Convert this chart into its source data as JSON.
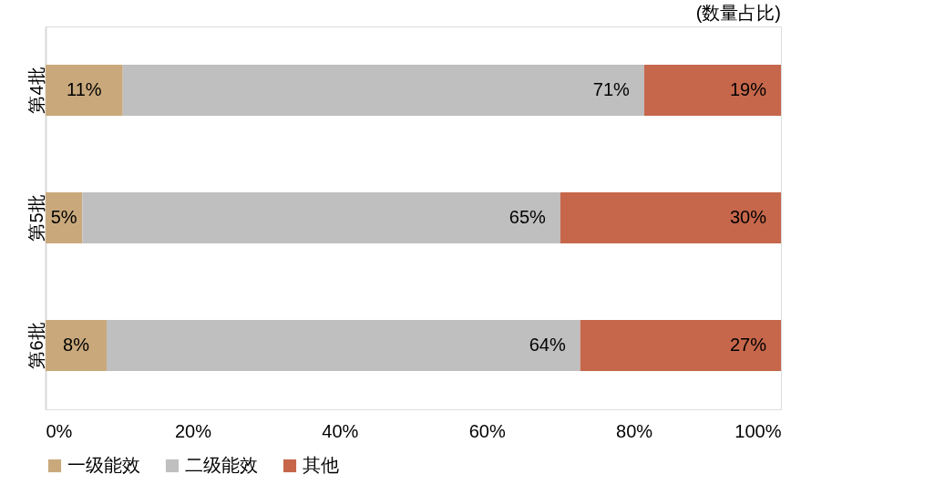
{
  "chart_data": {
    "type": "bar",
    "orientation": "horizontal",
    "stacked": true,
    "categories": [
      "第4批",
      "第5批",
      "第6批"
    ],
    "series": [
      {
        "name": "一级能效",
        "color": "#c9a97c",
        "values": [
          10.5,
          5,
          8.3
        ],
        "value_labels": [
          "11%",
          "5%",
          "8%"
        ]
      },
      {
        "name": "二级能效",
        "color": "#bfbfc0",
        "values": [
          70.9,
          65,
          64.4
        ],
        "value_labels": [
          "71%",
          "65%",
          "64%"
        ]
      },
      {
        "name": "其他",
        "color": "#c6674b",
        "values": [
          18.6,
          30,
          27.3
        ],
        "value_labels": [
          "19%",
          "30%",
          "27%"
        ]
      }
    ],
    "xlim": [
      0,
      100
    ],
    "xticks": [
      {
        "value": 0,
        "label": "0%"
      },
      {
        "value": 20,
        "label": "20%"
      },
      {
        "value": 40,
        "label": "40%"
      },
      {
        "value": 60,
        "label": "60%"
      },
      {
        "value": 80,
        "label": "80%"
      },
      {
        "value": 100,
        "label": "100%"
      }
    ],
    "annotations": [
      "(数量占比)"
    ],
    "grid": false,
    "legend": "bottom"
  }
}
